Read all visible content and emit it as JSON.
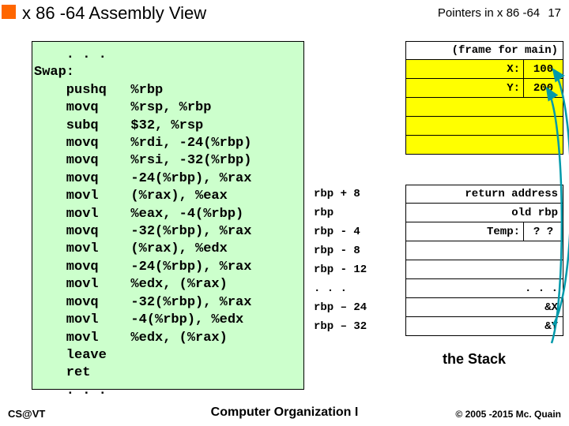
{
  "header": {
    "title": "x 86 -64 Assembly View",
    "topic": "Pointers in x 86 -64",
    "page": "17"
  },
  "code": {
    "lines": [
      "    . . .",
      "Swap:",
      "    pushq   %rbp",
      "    movq    %rsp, %rbp",
      "    subq    $32, %rsp",
      "    movq    %rdi, -24(%rbp)",
      "    movq    %rsi, -32(%rbp)",
      "    movq    -24(%rbp), %rax",
      "    movl    (%rax), %eax",
      "    movl    %eax, -4(%rbp)",
      "    movq    -32(%rbp), %rax",
      "    movl    (%rax), %edx",
      "    movq    -24(%rbp), %rax",
      "    movl    %edx, (%rax)",
      "    movq    -32(%rbp), %rax",
      "    movl    -4(%rbp), %edx",
      "    movl    %edx, (%rax)",
      "    leave",
      "    ret",
      "    . . ."
    ]
  },
  "stack": {
    "frame_label": "(frame for main)",
    "rows": [
      {
        "label": "",
        "left": "X:",
        "right": "100",
        "split": true,
        "yellow": true
      },
      {
        "label": "",
        "left": "Y:",
        "right": "200",
        "split": true,
        "yellow": true
      },
      {
        "label": "",
        "content": "",
        "yellow": true
      },
      {
        "label": "",
        "content": "",
        "yellow": true
      },
      {
        "label": "",
        "content": "",
        "yellow": true
      }
    ],
    "rows2": [
      {
        "label": "rbp + 8",
        "content": "return address"
      },
      {
        "label": "rbp",
        "content": "old rbp"
      },
      {
        "label": "rbp -  4",
        "left": "Temp:",
        "right": "? ?",
        "split": true
      },
      {
        "label": "rbp -  8",
        "content": ""
      },
      {
        "label": "rbp - 12",
        "content": ""
      },
      {
        "label": ". . .",
        "content": ". . ."
      },
      {
        "label": "rbp – 24",
        "content": "&X"
      },
      {
        "label": "rbp – 32",
        "content": "&Y"
      }
    ],
    "caption": "the Stack"
  },
  "footer": {
    "left": "CS@VT",
    "center": "Computer Organization I",
    "right": "© 2005 -2015 Mc. Quain"
  },
  "colors": {
    "orange": "#ff6600",
    "code_bg": "#ccffcc",
    "yellow": "#ffff00",
    "arrow": "#0099aa"
  }
}
